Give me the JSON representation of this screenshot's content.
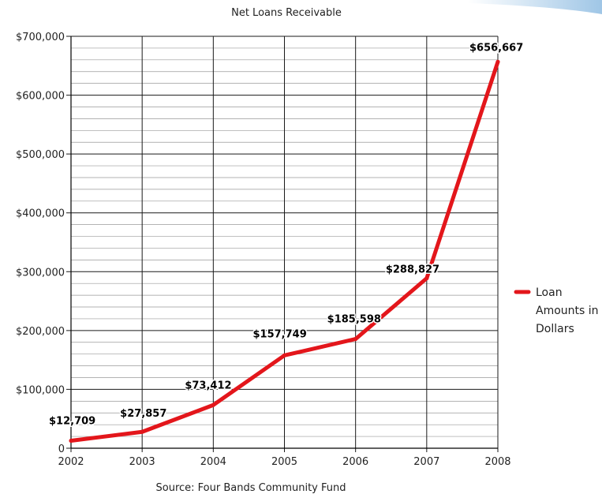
{
  "chart_data": {
    "type": "line",
    "title": "Net Loans Receivable",
    "source": "Source: Four Bands Community Fund",
    "x": [
      "2002",
      "2003",
      "2004",
      "2005",
      "2006",
      "2007",
      "2008"
    ],
    "series": [
      {
        "name": "Loan Amounts in Dollars",
        "legend_lines": [
          "Loan",
          "Amounts in",
          "Dollars"
        ],
        "values": [
          12709,
          27857,
          73412,
          157749,
          185598,
          288827,
          656667
        ],
        "data_labels": [
          "$12,709",
          "$27,857",
          "$73,412",
          "$157,749",
          "$185,598",
          "$288,827",
          "$656,667"
        ],
        "color": "#e3161b"
      }
    ],
    "ylim": [
      0,
      700000
    ],
    "y_ticks": [
      0,
      100000,
      200000,
      300000,
      400000,
      500000,
      600000,
      700000
    ],
    "y_tick_labels": [
      "0",
      "$100,000",
      "$200,000",
      "$300,000",
      "$400,000",
      "$500,000",
      "$600,000",
      "$700,000"
    ],
    "grid": true,
    "legend_position": "right"
  },
  "colors": {
    "line": "#e3161b",
    "grid_major": "#1a1a1a",
    "grid_minor": "#9a9a9a",
    "decor": "#cfe3f3"
  }
}
